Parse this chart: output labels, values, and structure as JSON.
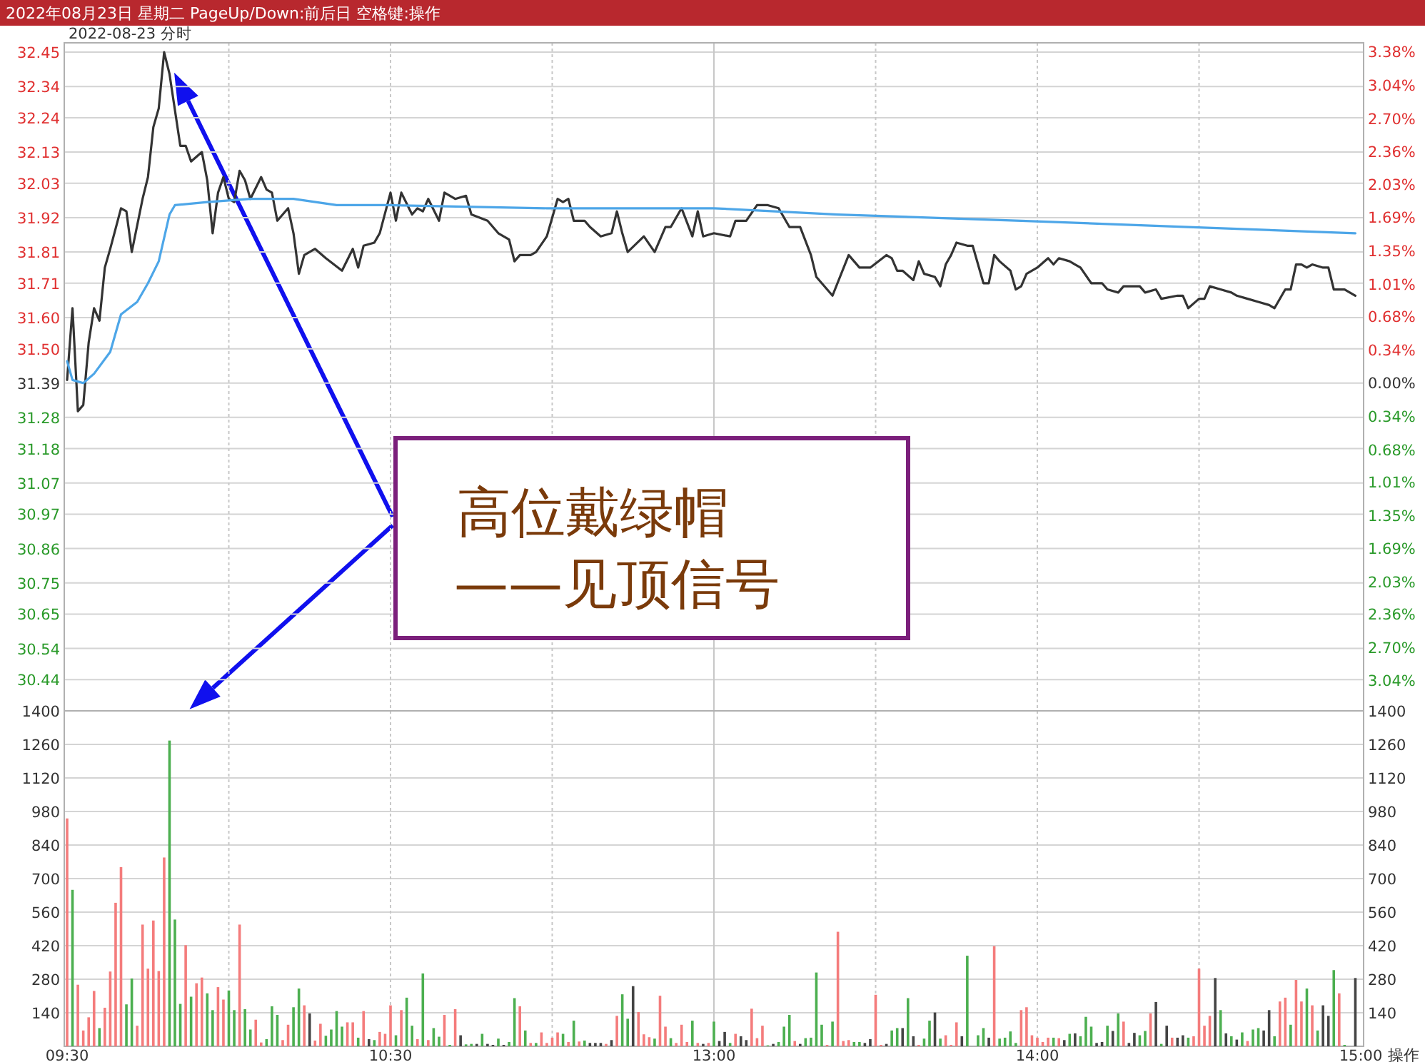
{
  "chart_data": [
    {
      "type": "line",
      "title": "2022年08月23日 星期二 PageUp/Down:前后日 空格键:操作",
      "subtitle": "2022-08-23 分时",
      "categories": [
        null,
        null,
        null,
        null,
        null,
        null,
        null,
        null,
        null,
        null,
        null,
        null,
        null,
        null,
        null,
        null,
        null,
        null,
        null,
        null,
        null,
        null,
        null,
        null,
        null,
        null,
        null,
        null,
        null,
        null,
        null,
        null,
        null,
        null,
        null,
        null,
        null,
        null,
        null,
        null,
        null,
        null,
        null,
        null,
        null,
        null,
        null,
        null,
        null,
        null,
        null,
        null,
        null,
        null,
        null,
        null,
        null,
        null,
        null,
        null,
        null,
        null,
        null,
        null,
        null,
        null,
        null,
        null,
        null,
        null,
        null,
        null,
        null,
        null,
        null,
        null,
        null,
        null,
        null,
        null,
        null,
        null,
        null,
        null,
        null,
        null,
        null,
        null,
        null,
        null,
        null,
        null,
        null,
        null,
        null,
        null,
        null,
        null,
        null,
        null,
        null,
        null,
        null,
        null,
        null,
        null,
        null,
        null,
        null,
        null,
        null,
        null,
        null,
        null,
        null,
        null,
        null,
        null,
        null,
        null,
        null,
        null,
        null,
        null,
        null,
        null,
        null,
        null,
        null,
        null,
        null,
        null,
        null,
        null,
        null,
        null,
        null,
        null,
        null,
        null,
        null,
        null,
        null,
        null,
        null,
        null,
        null,
        null,
        null,
        null,
        null,
        null,
        null,
        null,
        null,
        null,
        null,
        null,
        null,
        null,
        null,
        null,
        null,
        null,
        null,
        null,
        null,
        null,
        null,
        null,
        null,
        null,
        null,
        null,
        null,
        null,
        null,
        null,
        null,
        null,
        null,
        null,
        null,
        null,
        null,
        null,
        null,
        null,
        null,
        null,
        null,
        null,
        null,
        null,
        null,
        null,
        null,
        null,
        null,
        null,
        null,
        null,
        null,
        null,
        null,
        null,
        null,
        null,
        null,
        null,
        null,
        null,
        null,
        null,
        null,
        null,
        null,
        null,
        null,
        null,
        null,
        null,
        null,
        null,
        null,
        null,
        null,
        null,
        null,
        null,
        null,
        null,
        null,
        null,
        null,
        null,
        null,
        null,
        null,
        null,
        null
      ],
      "series": [
        {
          "color": "#333333",
          "values": [
            31.4,
            31.63,
            31.3,
            31.32,
            31.52,
            31.63,
            31.59,
            31.76,
            31.82,
            null,
            31.95,
            31.94,
            31.81,
            null,
            31.98,
            32.05,
            32.21,
            32.27,
            32.45,
            32.38,
            null,
            32.15,
            32.15,
            32.1,
            null,
            32.13,
            32.04,
            31.87,
            32.0,
            32.05,
            31.98,
            31.97,
            32.07,
            32.04,
            31.98,
            null,
            32.05,
            32.01,
            32.0,
            31.91,
            null,
            31.95,
            31.87,
            31.74,
            31.8,
            null,
            31.82,
            null,
            31.79,
            null,
            null,
            31.75,
            null,
            31.82,
            31.76,
            31.83,
            null,
            31.84,
            31.87,
            null,
            32.0,
            31.91,
            32.0,
            null,
            31.93,
            31.95,
            31.94,
            31.98,
            null,
            31.91,
            32.0,
            null,
            31.98,
            null,
            31.99,
            31.93,
            null,
            null,
            31.91,
            null,
            31.87,
            null,
            31.85,
            31.78,
            31.8,
            null,
            31.8,
            31.81,
            null,
            31.86,
            31.92,
            31.98,
            31.97,
            31.98,
            31.91,
            null,
            31.91,
            31.89,
            null,
            31.86,
            null,
            31.87,
            31.94,
            31.87,
            31.81,
            null,
            null,
            31.86,
            null,
            31.81,
            null,
            31.89,
            31.89,
            null,
            31.95,
            null,
            31.86,
            31.94,
            31.86,
            null,
            31.87,
            null,
            null,
            31.86,
            31.91,
            null,
            31.91,
            null,
            31.96,
            null,
            31.96,
            null,
            31.95,
            null,
            31.89,
            null,
            31.89,
            null,
            31.8,
            31.73,
            null,
            null,
            31.67,
            null,
            null,
            31.8,
            null,
            31.76,
            null,
            31.76,
            null,
            null,
            31.8,
            31.79,
            31.75,
            31.75,
            null,
            31.72,
            31.78,
            31.74,
            null,
            31.73,
            31.7,
            31.77,
            31.8,
            31.84,
            null,
            31.83,
            31.83,
            null,
            31.71,
            31.71,
            31.8,
            31.78,
            null,
            31.75,
            31.69,
            31.7,
            31.74,
            null,
            31.76,
            null,
            31.79,
            31.77,
            31.79,
            null,
            31.78,
            31.77,
            31.76,
            null,
            31.71,
            null,
            31.71,
            31.69,
            null,
            31.68,
            31.7,
            null,
            null,
            31.7,
            31.68,
            null,
            31.69,
            31.66,
            null,
            null,
            31.67,
            31.67,
            31.63,
            null,
            31.66,
            31.66,
            31.7,
            null,
            31.69,
            null,
            31.68,
            31.67,
            null,
            31.66,
            null,
            31.65,
            null,
            31.64,
            31.63,
            null,
            31.69,
            31.69,
            31.77,
            31.77,
            31.76,
            31.77,
            null,
            31.76,
            31.76,
            31.69,
            null,
            31.69,
            null,
            31.67,
            null
          ]
        },
        {
          "color": "#4da6e8",
          "values": [
            31.46,
            31.4,
            null,
            31.39,
            null,
            31.42,
            null,
            null,
            31.49,
            null,
            31.61,
            null,
            null,
            31.65,
            null,
            31.71,
            null,
            31.78,
            null,
            31.93,
            31.96,
            null,
            null,
            null,
            null,
            null,
            31.97,
            null,
            null,
            null,
            null,
            null,
            null,
            null,
            31.98,
            null,
            null,
            null,
            null,
            null,
            null,
            null,
            31.98,
            null,
            null,
            null,
            null,
            null,
            null,
            null,
            31.96,
            null,
            null,
            null,
            null,
            null,
            null,
            null,
            null,
            31.96,
            null,
            null,
            null,
            null,
            null,
            null,
            null,
            null,
            null,
            null,
            null,
            null,
            null,
            null,
            null,
            null,
            null,
            null,
            null,
            null,
            null,
            null,
            null,
            null,
            null,
            null,
            null,
            null,
            null,
            31.95,
            null,
            null,
            null,
            null,
            null,
            null,
            null,
            null,
            null,
            null,
            null,
            null,
            null,
            null,
            null,
            null,
            null,
            null,
            null,
            null,
            null,
            null,
            null,
            null,
            null,
            null,
            null,
            null,
            null,
            null,
            31.95,
            null,
            null,
            null,
            null,
            null,
            null,
            null,
            null,
            null,
            null,
            null,
            null,
            null,
            null,
            null,
            null,
            null,
            null,
            null,
            null,
            null,
            null,
            31.93,
            null,
            null,
            null,
            null,
            null,
            null,
            null,
            null,
            null,
            null,
            null,
            null,
            null,
            null,
            null,
            null,
            null,
            null,
            null,
            null,
            null,
            null,
            null,
            null,
            null,
            null,
            null,
            null,
            null,
            null,
            null,
            null,
            null,
            31.91,
            null,
            null,
            null,
            null,
            null,
            null,
            null,
            null,
            null,
            null,
            null,
            null,
            null,
            null,
            null,
            null,
            null,
            null,
            null,
            null,
            null,
            null,
            null,
            null,
            null,
            null,
            null,
            null,
            null,
            null,
            31.89,
            null,
            null,
            null,
            null,
            null,
            null,
            null,
            null,
            null,
            null,
            null,
            null,
            null,
            null,
            null,
            null,
            null,
            null,
            null,
            null,
            null,
            null,
            null,
            null,
            null,
            null,
            null,
            null,
            null,
            null,
            31.87,
            null
          ]
        }
      ],
      "ylim": [
        30.34,
        32.48
      ],
      "yticks": [
        32.45,
        32.34,
        32.24,
        32.13,
        32.03,
        31.92,
        31.81,
        31.71,
        {
          "value": 31.6,
          "label": "31.60"
        },
        {
          "value": 31.5,
          "label": "31.50"
        },
        31.39,
        31.28,
        31.18,
        31.07,
        30.97,
        30.86,
        30.75,
        30.65,
        30.54,
        30.44
      ],
      "y2lim": [
        -3.35,
        3.47
      ],
      "y2ticks": [
        {
          "value": 3.38,
          "label": "3.38%"
        },
        {
          "value": 3.04,
          "label": "3.04%"
        },
        {
          "value": 2.7,
          "label": "2.70%"
        },
        {
          "value": 2.36,
          "label": "2.36%"
        },
        {
          "value": 2.03,
          "label": "2.03%"
        },
        {
          "value": 1.69,
          "label": "1.69%"
        },
        {
          "value": 1.35,
          "label": "1.35%"
        },
        {
          "value": 1.01,
          "label": "1.01%"
        },
        {
          "value": 0.68,
          "label": "0.68%"
        },
        {
          "value": 0.34,
          "label": "0.34%"
        },
        {
          "value": 0,
          "label": "0.00%"
        },
        {
          "value": -0.34,
          "label": "0.34%"
        },
        {
          "value": -0.68,
          "label": "0.68%"
        },
        {
          "value": -1.01,
          "label": "1.01%"
        },
        {
          "value": -1.35,
          "label": "1.35%"
        },
        {
          "value": -1.69,
          "label": "1.69%"
        },
        {
          "value": -2.03,
          "label": "2.03%"
        },
        {
          "value": -2.36,
          "label": "2.36%"
        },
        {
          "value": -2.7,
          "label": "2.70%"
        },
        {
          "value": -3.04,
          "label": "3.04%"
        }
      ],
      "tick_labels": "y",
      "grid": true,
      "line_style": "solid",
      "annotations": [
        "高位戴绿帽\n——见顶信号"
      ]
    },
    {
      "type": "bar",
      "categories": [
        "09:30",
        null,
        null,
        null,
        null,
        null,
        null,
        null,
        null,
        null,
        null,
        null,
        null,
        null,
        null,
        null,
        null,
        null,
        null,
        null,
        null,
        null,
        null,
        null,
        null,
        null,
        null,
        null,
        null,
        null,
        null,
        null,
        null,
        null,
        null,
        null,
        null,
        null,
        null,
        null,
        null,
        null,
        null,
        null,
        null,
        null,
        null,
        null,
        null,
        null,
        null,
        null,
        null,
        null,
        null,
        null,
        null,
        null,
        null,
        null,
        "10:30",
        null,
        null,
        null,
        null,
        null,
        null,
        null,
        null,
        null,
        null,
        null,
        null,
        null,
        null,
        null,
        null,
        null,
        null,
        null,
        null,
        null,
        null,
        null,
        null,
        null,
        null,
        null,
        null,
        null,
        null,
        null,
        null,
        null,
        null,
        null,
        null,
        null,
        null,
        null,
        null,
        null,
        null,
        null,
        null,
        null,
        null,
        null,
        null,
        null,
        null,
        null,
        null,
        null,
        null,
        null,
        null,
        null,
        null,
        null,
        "13:00",
        null,
        null,
        null,
        null,
        null,
        null,
        null,
        null,
        null,
        null,
        null,
        null,
        null,
        null,
        null,
        null,
        null,
        null,
        null,
        null,
        null,
        null,
        null,
        null,
        null,
        null,
        null,
        null,
        null,
        null,
        null,
        null,
        null,
        null,
        null,
        null,
        null,
        null,
        null,
        null,
        null,
        null,
        null,
        null,
        null,
        null,
        null,
        null,
        null,
        null,
        null,
        null,
        null,
        null,
        null,
        null,
        null,
        null,
        null,
        "14:00",
        null,
        null,
        null,
        null,
        null,
        null,
        null,
        null,
        null,
        null,
        null,
        null,
        null,
        null,
        null,
        null,
        null,
        null,
        null,
        null,
        null,
        null,
        null,
        null,
        null,
        null,
        null,
        null,
        null,
        null,
        null,
        null,
        null,
        null,
        null,
        null,
        null,
        null,
        null,
        null,
        null,
        null,
        null,
        null,
        null,
        null,
        null,
        null,
        null,
        null,
        null,
        null,
        null,
        null,
        null,
        null,
        null,
        null,
        null,
        "15:00"
      ],
      "values": [
        951,
        653,
        257,
        66,
        121,
        231,
        76,
        161,
        312,
        599,
        748,
        175,
        283,
        86,
        508,
        324,
        525,
        314,
        788,
        1276,
        529,
        177,
        422,
        207,
        263,
        287,
        221,
        151,
        247,
        195,
        233,
        151,
        508,
        155,
        70,
        111,
        16,
        30,
        167,
        131,
        26,
        90,
        163,
        241,
        171,
        137,
        24,
        94,
        44,
        70,
        147,
        82,
        100,
        100,
        36,
        147,
        30,
        26,
        60,
        52,
        171,
        46,
        151,
        203,
        86,
        30,
        304,
        26,
        76,
        40,
        131,
        6,
        155,
        46,
        8,
        10,
        10,
        52,
        10,
        6,
        32,
        6,
        18,
        201,
        167,
        66,
        14,
        14,
        58,
        14,
        36,
        58,
        52,
        18,
        107,
        20,
        24,
        14,
        14,
        14,
        10,
        26,
        127,
        217,
        115,
        251,
        143,
        50,
        38,
        32,
        211,
        82,
        34,
        14,
        90,
        18,
        107,
        14,
        10,
        14,
        103,
        22,
        60,
        14,
        52,
        42,
        26,
        157,
        34,
        86,
        4,
        10,
        18,
        82,
        131,
        22,
        10,
        34,
        36,
        308,
        90,
        6,
        103,
        478,
        22,
        26,
        18,
        18,
        14,
        30,
        215,
        6,
        10,
        66,
        76,
        76,
        201,
        42,
        6,
        32,
        107,
        141,
        32,
        46,
        6,
        100,
        42,
        378,
        null,
        46,
        76,
        36,
        418,
        32,
        36,
        62,
        14,
        151,
        163,
        46,
        36,
        18,
        36,
        36,
        34,
        26,
        52,
        54,
        42,
        123,
        82,
        14,
        18,
        86,
        64,
        137,
        103,
        14,
        56,
        46,
        64,
        137,
        185,
        10,
        86,
        36,
        36,
        46,
        36,
        42,
        324,
        86,
        127,
        285,
        151,
        54,
        42,
        28,
        58,
        22,
        70,
        76,
        66,
        151,
        42,
        187,
        203,
        90,
        277,
        187,
        241,
        171,
        66,
        171,
        127,
        318,
        221,
        6,
        null,
        285,
        null
      ],
      "colors": [
        "#f47c7c",
        "#4caf50",
        "#f47c7c",
        "#f47c7c",
        "#f47c7c",
        "#f47c7c",
        "#4caf50",
        "#f47c7c",
        "#f47c7c",
        "#f47c7c",
        "#f47c7c",
        "#4caf50",
        "#4caf50",
        "#f47c7c",
        "#f47c7c",
        "#f47c7c",
        "#f47c7c",
        "#f47c7c",
        "#f47c7c",
        "#4caf50",
        "#4caf50",
        "#4caf50",
        "#f47c7c",
        "#4caf50",
        "#f47c7c",
        "#f47c7c",
        "#4caf50",
        "#4caf50",
        "#f47c7c",
        "#f47c7c",
        "#4caf50",
        "#4caf50",
        "#f47c7c",
        "#4caf50",
        "#4caf50",
        "#f47c7c",
        "#f47c7c",
        "#4caf50",
        "#4caf50",
        "#4caf50",
        "#f47c7c",
        "#f47c7c",
        "#4caf50",
        "#4caf50",
        "#f47c7c",
        "#444444",
        "#f47c7c",
        "#f47c7c",
        "#4caf50",
        "#4caf50",
        "#4caf50",
        "#4caf50",
        "#f47c7c",
        "#f47c7c",
        "#4caf50",
        "#f47c7c",
        "#444444",
        "#4caf50",
        "#f47c7c",
        "#f47c7c",
        "#f47c7c",
        "#4caf50",
        "#f47c7c",
        "#4caf50",
        "#4caf50",
        "#f47c7c",
        "#4caf50",
        "#f47c7c",
        "#4caf50",
        "#4caf50",
        "#f47c7c",
        "#4caf50",
        "#f47c7c",
        "#444444",
        "#4caf50",
        "#4caf50",
        "#444444",
        "#4caf50",
        "#444444",
        "#444444",
        "#4caf50",
        "#444444",
        "#4caf50",
        "#4caf50",
        "#f47c7c",
        "#4caf50",
        "#f47c7c",
        "#4caf50",
        "#f47c7c",
        "#f47c7c",
        "#f47c7c",
        "#f47c7c",
        "#4caf50",
        "#f47c7c",
        "#4caf50",
        "#f47c7c",
        "#4caf50",
        "#444444",
        "#444444",
        "#444444",
        "#f47c7c",
        "#444444",
        "#f47c7c",
        "#4caf50",
        "#4caf50",
        "#444444",
        "#f47c7c",
        "#f47c7c",
        "#f47c7c",
        "#4caf50",
        "#f47c7c",
        "#f47c7c",
        "#4caf50",
        "#f47c7c",
        "#f47c7c",
        "#f47c7c",
        "#4caf50",
        "#f47c7c",
        "#444444",
        "#f47c7c",
        "#4caf50",
        "#444444",
        "#444444",
        "#4caf50",
        "#f47c7c",
        "#444444",
        "#444444",
        "#f47c7c",
        "#f47c7c",
        "#f47c7c",
        "#4caf50",
        "#444444",
        "#4caf50",
        "#4caf50",
        "#4caf50",
        "#f47c7c",
        "#444444",
        "#4caf50",
        "#4caf50",
        "#4caf50",
        "#4caf50",
        "#f47c7c",
        "#4caf50",
        "#f47c7c",
        "#f47c7c",
        "#f47c7c",
        "#4caf50",
        "#4caf50",
        "#444444",
        "#444444",
        "#f47c7c",
        "#f47c7c",
        "#444444",
        "#4caf50",
        "#4caf50",
        "#444444",
        "#4caf50",
        "#444444",
        "#f47c7c",
        "#4caf50",
        "#4caf50",
        "#444444",
        "#4caf50",
        "#f47c7c",
        "#f47c7c",
        "#f47c7c",
        "#444444",
        "#4caf50",
        null,
        "#4caf50",
        "#4caf50",
        "#444444",
        "#f47c7c",
        "#4caf50",
        "#4caf50",
        "#4caf50",
        "#4caf50",
        "#f47c7c",
        "#f47c7c",
        "#f47c7c",
        "#f47c7c",
        "#f47c7c",
        "#f47c7c",
        "#4caf50",
        "#f47c7c",
        "#444444",
        "#4caf50",
        "#444444",
        "#4caf50",
        "#4caf50",
        "#4caf50",
        "#444444",
        "#444444",
        "#4caf50",
        "#444444",
        "#4caf50",
        "#f47c7c",
        "#444444",
        "#444444",
        "#4caf50",
        "#4caf50",
        "#f47c7c",
        "#444444",
        "#4caf50",
        "#444444",
        "#f47c7c",
        "#444444",
        "#444444",
        "#4caf50",
        "#f47c7c",
        "#f47c7c",
        "#f47c7c",
        "#f47c7c",
        "#444444",
        "#4caf50",
        "#444444",
        "#4caf50",
        "#444444",
        "#4caf50",
        "#f47c7c",
        "#4caf50",
        "#4caf50",
        "#444444",
        "#444444",
        "#4caf50",
        "#f47c7c",
        "#f47c7c",
        "#4caf50",
        "#f47c7c",
        "#f47c7c",
        "#4caf50",
        "#f47c7c",
        "#4caf50",
        "#444444",
        "#444444",
        "#4caf50",
        "#f47c7c",
        "#4caf50",
        null,
        "#444444",
        null
      ],
      "ylim": [
        0,
        1400
      ],
      "yticks": [
        140,
        280,
        420,
        560,
        700,
        840,
        980,
        1120,
        1260,
        1400
      ],
      "y2lim": [
        0,
        1400
      ],
      "y2ticks": [
        140,
        280,
        420,
        560,
        700,
        840,
        980,
        1120,
        1260,
        1400
      ],
      "grid": true,
      "annotations": [
        "操作"
      ]
    }
  ]
}
